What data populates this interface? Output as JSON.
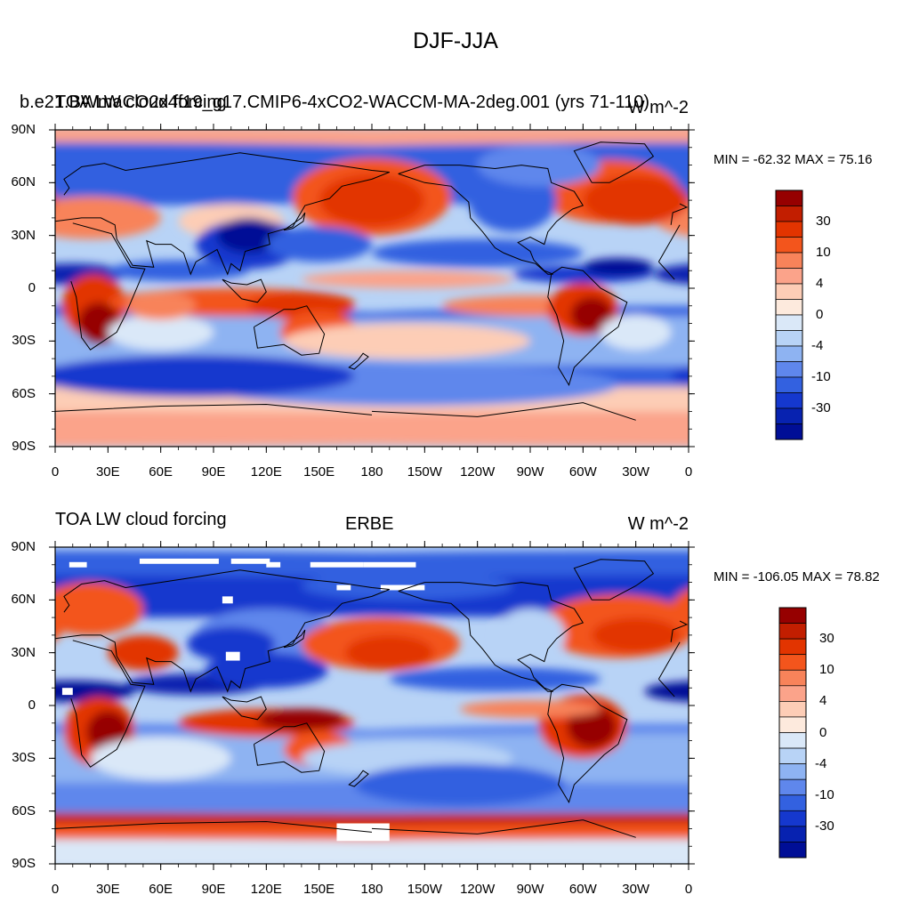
{
  "main_title": "DJF-JJA",
  "panels": [
    {
      "left_title_a": "b.e21.BWmaCO2x4f19_g17.CMIP6-4xCO2-WACCM-MA-2deg.001 (yrs 71-110)",
      "left_title_b": "TOA LW cloud forcing",
      "center_title": "",
      "right_title": "W m^-2",
      "minmax": "MIN = -62.32 MAX =  75.16",
      "min": -62.32,
      "max": 75.16
    },
    {
      "left_title_a": "TOA LW cloud forcing",
      "left_title_b": "",
      "center_title": "ERBE",
      "right_title": "W m^-2",
      "minmax": "MIN = -106.05 MAX =  78.82",
      "min": -106.05,
      "max": 78.82
    }
  ],
  "chart_data": {
    "type": "heatmap",
    "title": "DJF-JJA",
    "variable": "TOA LW cloud forcing",
    "units": "W m^-2",
    "x_ticks": [
      "0",
      "30E",
      "60E",
      "90E",
      "120E",
      "150E",
      "180",
      "150W",
      "120W",
      "90W",
      "60W",
      "30W",
      "0"
    ],
    "y_ticks": [
      "90N",
      "60N",
      "30N",
      "0",
      "30S",
      "60S",
      "90S"
    ],
    "colorbar_labels": [
      "30",
      "10",
      "4",
      "0",
      "-4",
      "-10",
      "-30"
    ],
    "colorbar_colors": [
      "#960000",
      "#c21e00",
      "#e23400",
      "#f3551c",
      "#f8835a",
      "#fba38a",
      "#fdcdb6",
      "#fdeadd",
      "#dae8f8",
      "#b8d3f6",
      "#8eb3f2",
      "#5f87ec",
      "#3361e0",
      "#1538ce",
      "#0722b0",
      "#000e96"
    ],
    "x_range_deg": [
      0,
      360
    ],
    "y_range_deg": [
      -90,
      90
    ],
    "panels": [
      "b.e21.BWmaCO2x4f19_g17.CMIP6-4xCO2-WACCM-MA-2deg.001 (yrs 71-110)",
      "ERBE"
    ]
  }
}
